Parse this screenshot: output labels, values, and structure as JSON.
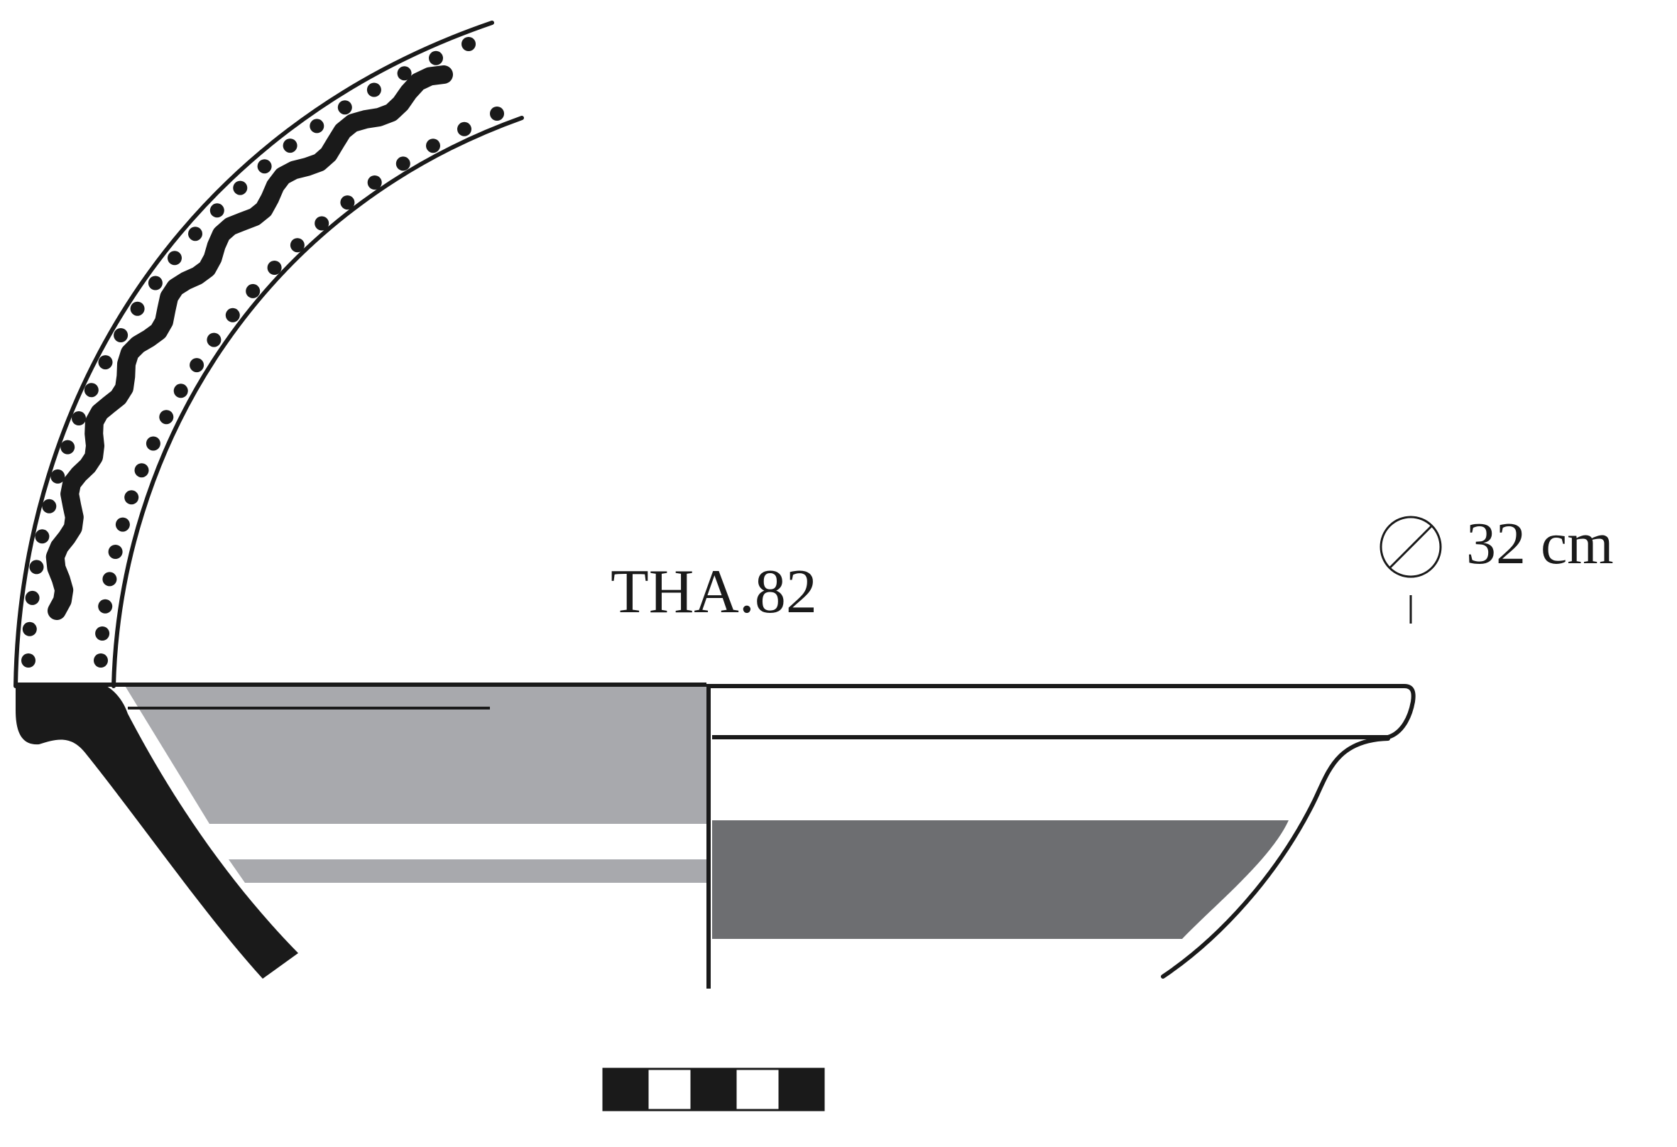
{
  "catalog_number": "THA.82",
  "diameter": {
    "value": "32 cm"
  },
  "scale_bar": {
    "segments": 5
  },
  "colors": {
    "ink": "#1a1a1a",
    "light_gray": "#a8a9ad",
    "dark_gray": "#6d6e71",
    "background": "#ffffff"
  }
}
